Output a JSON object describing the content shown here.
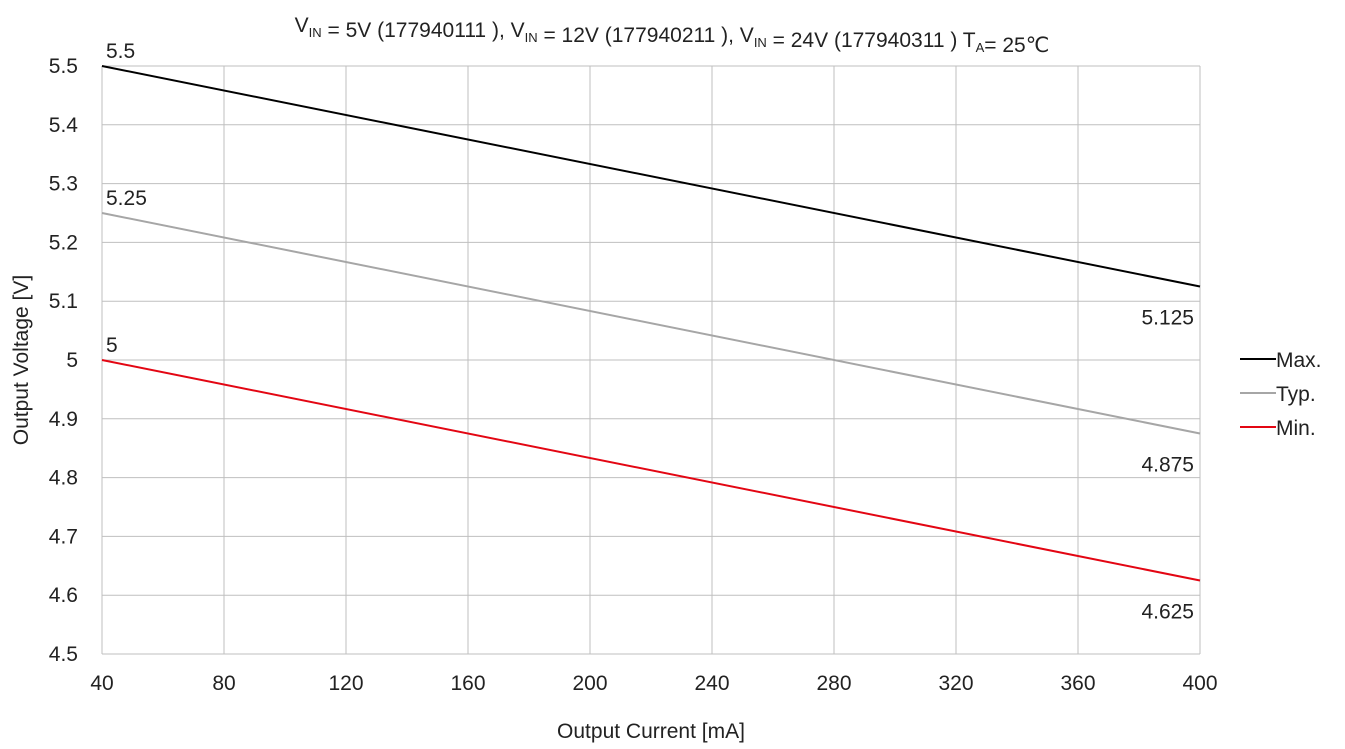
{
  "chart_data": {
    "type": "line",
    "title": {
      "segments": [
        {
          "text": "V",
          "sub": "IN"
        },
        {
          "text": " = 5V (177940111 ), V",
          "sub": "IN"
        },
        {
          "text": " = 12V (177940211 ), V",
          "sub": "IN"
        },
        {
          "text": " = 24V (177940311 )  T",
          "sub": "A"
        },
        {
          "text": "= 25℃",
          "sub": ""
        }
      ]
    },
    "xlabel": "Output Current [mA]",
    "ylabel": "Output Voltage [V]",
    "xlim": [
      40,
      400
    ],
    "ylim": [
      4.5,
      5.5
    ],
    "xticks": [
      "40",
      "80",
      "120",
      "160",
      "200",
      "240",
      "280",
      "320",
      "360",
      "400"
    ],
    "yticks": [
      "4.5",
      "4.6",
      "4.7",
      "4.8",
      "4.9",
      "5",
      "5.1",
      "5.2",
      "5.3",
      "5.4",
      "5.5"
    ],
    "grid": true,
    "legend_position": "right",
    "series": [
      {
        "name": "Max.",
        "color": "#000000",
        "x": [
          40,
          400
        ],
        "y": [
          5.5,
          5.125
        ],
        "labels": [
          "5.5",
          "5.125"
        ]
      },
      {
        "name": "Typ.",
        "color": "#a6a6a6",
        "x": [
          40,
          400
        ],
        "y": [
          5.25,
          4.875
        ],
        "labels": [
          "5.25",
          "4.875"
        ]
      },
      {
        "name": "Min.",
        "color": "#e30613",
        "x": [
          40,
          400
        ],
        "y": [
          5.0,
          4.625
        ],
        "labels": [
          "5",
          "4.625"
        ]
      }
    ]
  }
}
